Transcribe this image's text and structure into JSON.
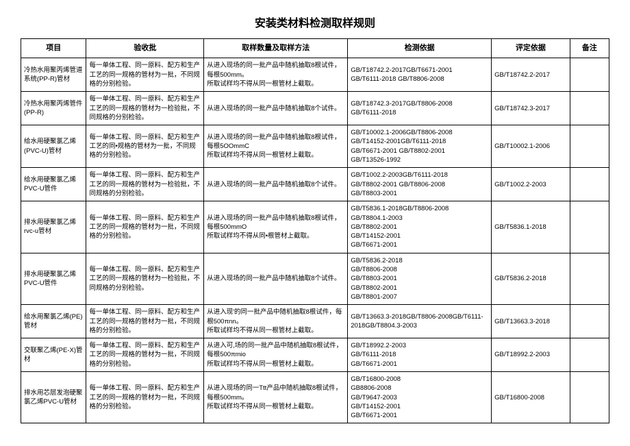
{
  "title": "安装类材料检测取样规则",
  "headers": [
    "项目",
    "验收批",
    "取样数量及取样方法",
    "检测依据",
    "评定依据",
    "备注"
  ],
  "rows": [
    {
      "project": "冷热水用聚丙烯管道系统(PP-R)管材",
      "batch": "每一单体工程、同一原料、配方和生产工艺的同一规格的管材为一批，不同规格的分别检验。",
      "sampling": "从进入现场的同一批产品中随机抽取8根试件，每根500mm。\n所取试样均不得从同一根管材上截取。",
      "basis": "GB/T18742.2-2017GB/T6671-2001\nGB/T6111-2018        GB/T8806-2008",
      "eval": "GB/T18742.2-2017",
      "remark": ""
    },
    {
      "project": "冷热水用聚丙烯管件(PP-R)",
      "batch": "每一单体工程、同一原料、配方和生产工艺的同一规格的管材为一检验批，不同规格的分别检验。",
      "sampling": "从进入现场的同一批产品中随机抽取8个试件。",
      "basis": "GB/T18742.3-2017GB/T8806-2008\nGB/T6111-2018",
      "eval": "GB/T18742.3-2017",
      "remark": ""
    },
    {
      "project": "给水用硬聚氯乙烯(PVC-U)管材",
      "batch": "每一单体工程、同一原料、配方和生产工艺的同•规格的管材为一批，不同规格的分别检验。",
      "sampling": "从进入现场的同一批产品中随机抽取8根试件，每根5OOmmC\n所取试样均不得从同一根管材上截取。",
      "basis": "GB/T10002.1-2006GB/T8806-2008\nGB/T14152-2001GB/T6111-2018\nGB/T6671-2001        GB/T8802-2001\nGB/T13526-1992",
      "eval": "GB/T10002.1-2006",
      "remark": ""
    },
    {
      "project": "给水用硬聚氯乙烯PVC-U管件",
      "batch": "每一单体工程、同一原料、配方和生产工艺的同一规格的管材为一检验批，不同规格的分别检验。",
      "sampling": "从进入现场的同一批产品中随机抽取8个试件。",
      "basis": "GB/T1002.2-2003GB/T6111-2018\nGB/T8802-2001        GB/T8806-2008\nGB/T8803-2001",
      "eval": "GB/T1002.2-2003",
      "remark": ""
    },
    {
      "project": "排水用硬聚氯乙烯rvc-u管材",
      "batch": "每一单体工程、同一原料、配方和生产工艺的同一规格的管材为一批，不同规格的分别检验。",
      "sampling": "从进入现场的同一批产品中随机抽取8根试件，每根500mmO\n所取试样均不得从同•根管材上截取。",
      "basis": "GB/T5836.1-2018GB/T8806-2008\nGB/T8804.1-2003\nGB/T8802-2001\nGB/T14152-2001\nGB/T6671-2001",
      "eval": "GB/T5836.1-2018",
      "remark": ""
    },
    {
      "project": "排水用硬聚氯乙烯PVC-U管件",
      "batch": "每一单体工程、同一原料、配方和生产工艺的同一规格的管材为一检验批，不同规格的分别检验。",
      "sampling": "从进入现场的同一批产品中随机抽取8个试件。",
      "basis": "GB/T5836.2-2018\nGB/T8806-2008\nGB/T8803-2001\nGB/T8802-2001\nGB/T8801-2007",
      "eval": "GB/T5836.2-2018",
      "remark": ""
    },
    {
      "project": "给水用聚氯乙烯(PE)管材",
      "batch": "每一单体工程、同一原料、配方和生产工艺的同一规格的管材为一批，不同规格的分别检验。",
      "sampling": "从进入现'的同一批产品中随机抽取8根试件，每根500πnn。\n所取试样均不得从同一根管材上截取。",
      "basis": "GB/T13663.3-2018GB/T8806-2008GB/T6111-2018GB/T8804.3-2003",
      "eval": "GB/T13663.3-2018",
      "remark": ""
    },
    {
      "project": "交联聚乙烯(PE-X)管材",
      "batch": "每一单体工程、同一原料、配方和生产工艺的同一规格的管材为一批，不同规格的分别检验。",
      "sampling": "从进入可,场的同一批产品中随机抽取8根试件，每根500πmio\n所取试样均不得从同一根管材上截取。",
      "basis": "GB/T18992.2-2003\nGB/T6111-2018\nGB/T6671-2001",
      "eval": "GB/T18992.2-2003",
      "remark": ""
    },
    {
      "project": "排水用芯层发泡硬聚氯乙烯PVC-U管材",
      "batch": "每一单体工程、同一原料、配方和生产工艺的同一规格的管材为一批，不同规格的分别检验。",
      "sampling": "从进入现场的同一Ttt产品中随机抽取8根试件，每根500mm。\n所取试样均不得从同一根管材上截取。",
      "basis": "GB/T16800-2008\nGB8806-2008\nGB/T9647-2003\nGB/T14152-2001\nGB/T6671-2001",
      "eval": "GB/T16800-2008",
      "remark": ""
    }
  ]
}
